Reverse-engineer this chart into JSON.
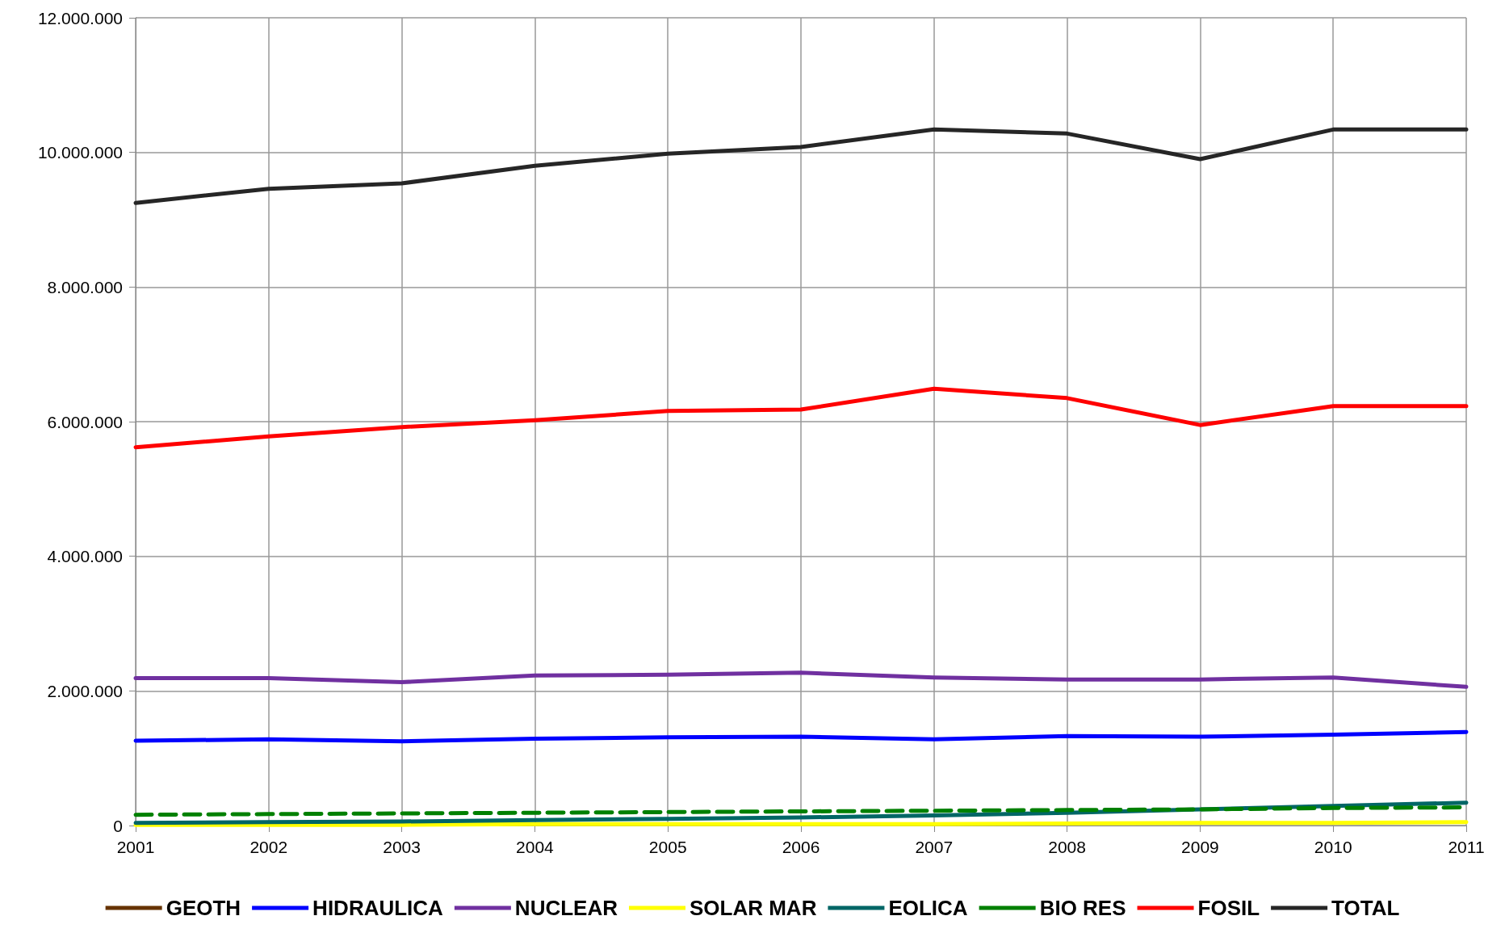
{
  "chart_data": {
    "type": "line",
    "x": [
      2001,
      2002,
      2003,
      2004,
      2005,
      2006,
      2007,
      2008,
      2009,
      2010,
      2011
    ],
    "xlim": [
      2001,
      2011
    ],
    "xticks": [
      2001,
      2002,
      2003,
      2004,
      2005,
      2006,
      2007,
      2008,
      2009,
      2010,
      2011
    ],
    "ylim": [
      0,
      12000000
    ],
    "yticks": [
      {
        "value": 0,
        "label": "0"
      },
      {
        "value": 2000000,
        "label": "2.000.000"
      },
      {
        "value": 4000000,
        "label": "4.000.000"
      },
      {
        "value": 6000000,
        "label": "6.000.000"
      },
      {
        "value": 8000000,
        "label": "8.000.000"
      },
      {
        "value": 10000000,
        "label": "10.000.000"
      },
      {
        "value": 12000000,
        "label": "12.000.000"
      }
    ],
    "grid": true,
    "legend": "bottom",
    "marker": "none",
    "series": [
      {
        "name": "GEOTH",
        "color": "#663300",
        "values": [
          null,
          null,
          null,
          null,
          null,
          null,
          null,
          null,
          null,
          null,
          null
        ]
      },
      {
        "name": "HIDRAULICA",
        "color": "#0000ff",
        "values": [
          1260000,
          1280000,
          1250000,
          1290000,
          1310000,
          1320000,
          1280000,
          1330000,
          1320000,
          1350000,
          1390000
        ]
      },
      {
        "name": "NUCLEAR",
        "color": "#7030a0",
        "values": [
          2190000,
          2190000,
          2130000,
          2230000,
          2240000,
          2270000,
          2200000,
          2170000,
          2170000,
          2200000,
          2060000
        ]
      },
      {
        "name": "SOLAR MAR",
        "color": "#ffff00",
        "values": [
          10000,
          10000,
          10000,
          20000,
          20000,
          20000,
          20000,
          30000,
          40000,
          40000,
          50000
        ]
      },
      {
        "name": "EOLICA",
        "color": "#006666",
        "values": [
          40000,
          50000,
          60000,
          80000,
          100000,
          120000,
          150000,
          190000,
          240000,
          290000,
          340000
        ]
      },
      {
        "name": "BIO RES",
        "color": "#008000",
        "line_style": "dashed",
        "values": [
          160000,
          170000,
          180000,
          190000,
          200000,
          210000,
          220000,
          230000,
          240000,
          260000,
          270000
        ]
      },
      {
        "name": "FOSIL",
        "color": "#ff0000",
        "values": [
          5620000,
          5780000,
          5920000,
          6020000,
          6160000,
          6180000,
          6490000,
          6350000,
          5950000,
          6230000,
          6230000
        ]
      },
      {
        "name": "TOTAL",
        "color": "#262626",
        "values": [
          9250000,
          9460000,
          9540000,
          9800000,
          9980000,
          10080000,
          10340000,
          10280000,
          9900000,
          10340000,
          10340000
        ]
      }
    ]
  }
}
